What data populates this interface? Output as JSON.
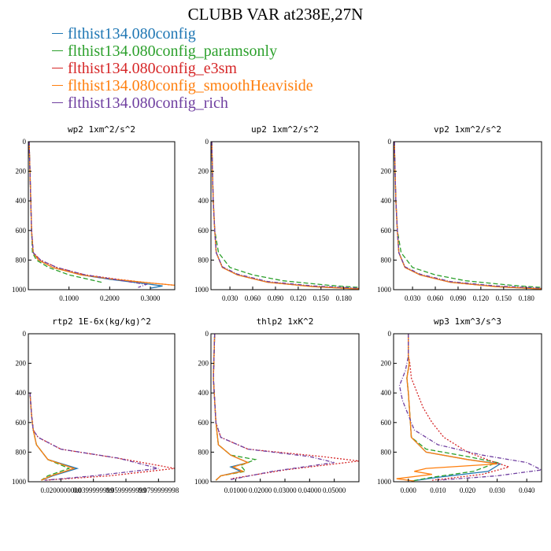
{
  "title": "CLUBB VAR at238E,27N",
  "legend": [
    {
      "label": "flthist134.080config",
      "color": "#1f77b4"
    },
    {
      "label": "flthist134.080config_paramsonly",
      "color": "#2ca02c"
    },
    {
      "label": "flthist134.080config_e3sm",
      "color": "#d62728"
    },
    {
      "label": "flthist134.080config_smoothHeaviside",
      "color": "#ff7f0e"
    },
    {
      "label": "flthist134.080config_rich",
      "color": "#6f3fa0"
    }
  ],
  "chart_data": [
    {
      "type": "line",
      "title": "wp2  1xm^2/s^2",
      "xlim": [
        0,
        0.36
      ],
      "ylim": [
        1000,
        0
      ],
      "xticks": [
        0.1,
        0.2,
        0.3
      ],
      "xticklabels": [
        "0.1000",
        "0.2000",
        "0.3000"
      ],
      "yticks": [
        0,
        200,
        400,
        600,
        800,
        1000
      ],
      "yticklabels": [
        "0",
        "200",
        "400",
        "600",
        "800",
        "1000"
      ],
      "series": [
        {
          "color": "#1f77b4",
          "dash": "",
          "x": [
            0.002,
            0.004,
            0.006,
            0.008,
            0.012,
            0.025,
            0.06,
            0.13,
            0.2,
            0.29,
            0.33,
            0.3
          ],
          "y": [
            0,
            200,
            400,
            600,
            750,
            800,
            850,
            900,
            930,
            960,
            975,
            990
          ]
        },
        {
          "color": "#2ca02c",
          "dash": "6,3",
          "x": [
            0.002,
            0.004,
            0.006,
            0.008,
            0.01,
            0.02,
            0.05,
            0.1,
            0.18
          ],
          "y": [
            0,
            200,
            400,
            600,
            750,
            800,
            850,
            900,
            950
          ]
        },
        {
          "color": "#d62728",
          "dash": "2,2",
          "x": [
            0.002,
            0.004,
            0.006,
            0.008,
            0.012,
            0.03,
            0.07,
            0.14,
            0.22,
            0.3,
            0.36
          ],
          "y": [
            0,
            200,
            400,
            600,
            750,
            800,
            850,
            900,
            930,
            955,
            970
          ]
        },
        {
          "color": "#ff7f0e",
          "dash": "",
          "x": [
            0.002,
            0.004,
            0.006,
            0.008,
            0.012,
            0.025,
            0.06,
            0.13,
            0.21,
            0.3,
            0.36
          ],
          "y": [
            0,
            200,
            400,
            600,
            750,
            800,
            850,
            900,
            930,
            955,
            970
          ]
        },
        {
          "color": "#6f3fa0",
          "dash": "5,2,1,2",
          "x": [
            0.002,
            0.004,
            0.006,
            0.008,
            0.012,
            0.03,
            0.07,
            0.14,
            0.21,
            0.29,
            0.27
          ],
          "y": [
            0,
            200,
            400,
            600,
            750,
            800,
            850,
            900,
            930,
            965,
            985
          ]
        }
      ]
    },
    {
      "type": "line",
      "title": "up2  1xm^2/s^2",
      "xlim": [
        0.005,
        0.2
      ],
      "ylim": [
        1000,
        0
      ],
      "xticks": [
        0.03,
        0.06,
        0.09,
        0.12,
        0.15,
        0.18
      ],
      "xticklabels": [
        "0.030",
        "0.060",
        "0.090",
        "0.120",
        "0.150",
        "0.180"
      ],
      "yticks": [
        0,
        200,
        400,
        600,
        800,
        1000
      ],
      "yticklabels": [
        "0",
        "200",
        "400",
        "600",
        "800",
        "1000"
      ],
      "series": [
        {
          "color": "#1f77b4",
          "dash": "",
          "x": [
            0.006,
            0.007,
            0.008,
            0.01,
            0.012,
            0.02,
            0.04,
            0.08,
            0.14,
            0.2
          ],
          "y": [
            0,
            200,
            400,
            600,
            750,
            850,
            900,
            950,
            980,
            995
          ]
        },
        {
          "color": "#2ca02c",
          "dash": "6,3",
          "x": [
            0.006,
            0.007,
            0.008,
            0.01,
            0.015,
            0.03,
            0.06,
            0.1,
            0.16,
            0.2
          ],
          "y": [
            0,
            200,
            400,
            600,
            750,
            850,
            900,
            940,
            970,
            985
          ]
        },
        {
          "color": "#d62728",
          "dash": "2,2",
          "x": [
            0.006,
            0.007,
            0.008,
            0.01,
            0.012,
            0.02,
            0.04,
            0.08,
            0.14,
            0.2
          ],
          "y": [
            0,
            200,
            400,
            600,
            750,
            850,
            900,
            950,
            978,
            993
          ]
        },
        {
          "color": "#ff7f0e",
          "dash": "",
          "x": [
            0.006,
            0.007,
            0.008,
            0.01,
            0.012,
            0.02,
            0.04,
            0.08,
            0.14,
            0.2
          ],
          "y": [
            0,
            200,
            400,
            600,
            750,
            850,
            900,
            950,
            980,
            995
          ]
        },
        {
          "color": "#6f3fa0",
          "dash": "5,2,1,2",
          "x": [
            0.006,
            0.007,
            0.008,
            0.01,
            0.012,
            0.02,
            0.04,
            0.08,
            0.14,
            0.2
          ],
          "y": [
            0,
            200,
            400,
            600,
            750,
            845,
            895,
            945,
            975,
            990
          ]
        }
      ]
    },
    {
      "type": "line",
      "title": "vp2  1xm^2/s^2",
      "xlim": [
        0.005,
        0.2
      ],
      "ylim": [
        1000,
        0
      ],
      "xticks": [
        0.03,
        0.06,
        0.09,
        0.12,
        0.15,
        0.18
      ],
      "xticklabels": [
        "0.030",
        "0.060",
        "0.090",
        "0.120",
        "0.150",
        "0.180"
      ],
      "yticks": [
        0,
        200,
        400,
        600,
        800,
        1000
      ],
      "yticklabels": [
        "0",
        "200",
        "400",
        "600",
        "800",
        "1000"
      ],
      "series": [
        {
          "color": "#1f77b4",
          "dash": "",
          "x": [
            0.006,
            0.007,
            0.008,
            0.01,
            0.012,
            0.02,
            0.04,
            0.08,
            0.14,
            0.2
          ],
          "y": [
            0,
            200,
            400,
            600,
            750,
            850,
            900,
            950,
            980,
            995
          ]
        },
        {
          "color": "#2ca02c",
          "dash": "6,3",
          "x": [
            0.006,
            0.007,
            0.008,
            0.01,
            0.015,
            0.03,
            0.06,
            0.1,
            0.16,
            0.2
          ],
          "y": [
            0,
            200,
            400,
            600,
            750,
            850,
            900,
            940,
            970,
            985
          ]
        },
        {
          "color": "#d62728",
          "dash": "2,2",
          "x": [
            0.006,
            0.007,
            0.008,
            0.01,
            0.012,
            0.02,
            0.04,
            0.08,
            0.14,
            0.2
          ],
          "y": [
            0,
            200,
            400,
            600,
            750,
            850,
            900,
            950,
            978,
            993
          ]
        },
        {
          "color": "#ff7f0e",
          "dash": "",
          "x": [
            0.006,
            0.007,
            0.008,
            0.01,
            0.012,
            0.02,
            0.04,
            0.08,
            0.14,
            0.2
          ],
          "y": [
            0,
            200,
            400,
            600,
            750,
            850,
            900,
            950,
            980,
            995
          ]
        },
        {
          "color": "#6f3fa0",
          "dash": "5,2,1,2",
          "x": [
            0.006,
            0.007,
            0.008,
            0.01,
            0.012,
            0.02,
            0.04,
            0.08,
            0.14,
            0.2
          ],
          "y": [
            0,
            200,
            400,
            600,
            750,
            845,
            895,
            945,
            975,
            990
          ]
        }
      ]
    },
    {
      "type": "line",
      "title": "rtp2  1E-6x(kg/kg)^2",
      "xlim": [
        0,
        0.09
      ],
      "ylim": [
        1000,
        0
      ],
      "xticks": [
        0.02,
        0.04,
        0.06,
        0.08
      ],
      "xticklabels": [
        "0.0200000000",
        "0.0399999999",
        "0.0599999999",
        "0.0799999998"
      ],
      "yticks": [
        0,
        200,
        400,
        600,
        800,
        1000
      ],
      "yticklabels": [
        "0",
        "200",
        "400",
        "600",
        "800",
        "1000"
      ],
      "series": [
        {
          "color": "#1f77b4",
          "dash": "",
          "x": [
            0.001,
            0.002,
            0.003,
            0.005,
            0.012,
            0.03,
            0.015,
            0.008
          ],
          "y": [
            400,
            550,
            650,
            750,
            850,
            910,
            960,
            990
          ]
        },
        {
          "color": "#2ca02c",
          "dash": "6,3",
          "x": [
            0.001,
            0.002,
            0.003,
            0.005,
            0.012,
            0.025,
            0.012,
            0.008
          ],
          "y": [
            400,
            550,
            650,
            750,
            850,
            910,
            960,
            990
          ]
        },
        {
          "color": "#d62728",
          "dash": "2,2",
          "x": [
            0.001,
            0.002,
            0.003,
            0.006,
            0.02,
            0.06,
            0.09,
            0.05,
            0.01
          ],
          "y": [
            400,
            550,
            650,
            700,
            780,
            850,
            910,
            960,
            990
          ]
        },
        {
          "color": "#ff7f0e",
          "dash": "",
          "x": [
            0.001,
            0.002,
            0.003,
            0.005,
            0.012,
            0.028,
            0.014,
            0.008
          ],
          "y": [
            400,
            550,
            650,
            750,
            850,
            910,
            960,
            990
          ]
        },
        {
          "color": "#6f3fa0",
          "dash": "5,2,1,2",
          "x": [
            0.001,
            0.002,
            0.003,
            0.006,
            0.02,
            0.055,
            0.08,
            0.04,
            0.01
          ],
          "y": [
            400,
            550,
            650,
            700,
            780,
            840,
            910,
            960,
            990
          ]
        }
      ]
    },
    {
      "type": "line",
      "title": "thlp2  1xK^2",
      "xlim": [
        0,
        0.06
      ],
      "ylim": [
        1000,
        0
      ],
      "xticks": [
        0.01,
        0.02,
        0.03,
        0.04,
        0.05
      ],
      "xticklabels": [
        "0.01000",
        "0.02000",
        "0.03000",
        "0.04000",
        "0.05000"
      ],
      "yticks": [
        0,
        200,
        400,
        600,
        800,
        1000
      ],
      "yticklabels": [
        "0",
        "200",
        "400",
        "600",
        "800",
        "1000"
      ],
      "series": [
        {
          "color": "#1f77b4",
          "dash": "",
          "x": [
            0.0015,
            0.001,
            0.002,
            0.003,
            0.008,
            0.015,
            0.008,
            0.012,
            0.004,
            0.002
          ],
          "y": [
            0,
            300,
            600,
            750,
            820,
            870,
            900,
            930,
            960,
            990
          ]
        },
        {
          "color": "#2ca02c",
          "dash": "6,3",
          "x": [
            0.0015,
            0.001,
            0.002,
            0.003,
            0.008,
            0.018,
            0.012,
            0.014,
            0.004,
            0.002
          ],
          "y": [
            0,
            300,
            600,
            750,
            820,
            850,
            890,
            930,
            960,
            990
          ]
        },
        {
          "color": "#d62728",
          "dash": "2,2",
          "x": [
            0.0015,
            0.001,
            0.002,
            0.004,
            0.015,
            0.045,
            0.06,
            0.03,
            0.008
          ],
          "y": [
            0,
            300,
            600,
            700,
            780,
            830,
            860,
            920,
            980
          ]
        },
        {
          "color": "#ff7f0e",
          "dash": "",
          "x": [
            0.0015,
            0.001,
            0.002,
            0.003,
            0.008,
            0.015,
            0.009,
            0.013,
            0.004,
            0.002
          ],
          "y": [
            0,
            300,
            600,
            750,
            820,
            870,
            900,
            930,
            960,
            990
          ]
        },
        {
          "color": "#6f3fa0",
          "dash": "5,2,1,2",
          "x": [
            0.0015,
            0.001,
            0.002,
            0.004,
            0.015,
            0.04,
            0.05,
            0.025,
            0.008
          ],
          "y": [
            0,
            300,
            600,
            700,
            780,
            830,
            870,
            930,
            985
          ]
        }
      ]
    },
    {
      "type": "line",
      "title": "wp3  1xm^3/s^3",
      "xlim": [
        -0.005,
        0.045
      ],
      "ylim": [
        1000,
        0
      ],
      "xticks": [
        0,
        0.01,
        0.02,
        0.03,
        0.04
      ],
      "xticklabels": [
        "0.000",
        "0.010",
        "0.020",
        "0.030",
        "0.040"
      ],
      "yticks": [
        0,
        200,
        400,
        600,
        800,
        1000
      ],
      "yticklabels": [
        "0",
        "200",
        "400",
        "600",
        "800",
        "1000"
      ],
      "series": [
        {
          "color": "#1f77b4",
          "dash": "",
          "x": [
            0,
            0,
            0.0003,
            -0.0005,
            0,
            0.001,
            0.006,
            0.02,
            0.031,
            0.027,
            0.01,
            0.001
          ],
          "y": [
            0,
            150,
            200,
            300,
            400,
            700,
            800,
            850,
            880,
            930,
            970,
            995
          ]
        },
        {
          "color": "#2ca02c",
          "dash": "6,3",
          "x": [
            0,
            0,
            0.0003,
            -0.0005,
            0,
            0.001,
            0.006,
            0.02,
            0.03,
            0.022,
            0.008,
            0.001
          ],
          "y": [
            0,
            150,
            200,
            300,
            400,
            700,
            780,
            830,
            870,
            930,
            970,
            995
          ]
        },
        {
          "color": "#d62728",
          "dash": "2,2",
          "x": [
            0,
            0,
            0.0005,
            0.001,
            0.003,
            0.005,
            0.008,
            0.012,
            0.02,
            0.028,
            0.034,
            0.025,
            0.008
          ],
          "y": [
            0,
            150,
            200,
            300,
            400,
            500,
            600,
            700,
            800,
            860,
            900,
            950,
            990
          ]
        },
        {
          "color": "#ff7f0e",
          "dash": "",
          "x": [
            0,
            0,
            0.0003,
            -0.0005,
            0,
            0.001,
            0.006,
            0.02,
            0.03,
            0.006,
            0.002,
            0.008,
            -0.004,
            0.002
          ],
          "y": [
            0,
            150,
            200,
            300,
            400,
            700,
            800,
            850,
            880,
            910,
            930,
            950,
            980,
            995
          ]
        },
        {
          "color": "#6f3fa0",
          "dash": "5,2,1,2",
          "x": [
            0,
            0,
            -0.001,
            -0.003,
            -0.002,
            0,
            0.002,
            0.01,
            0.025,
            0.04,
            0.045,
            0.03,
            0.01
          ],
          "y": [
            0,
            150,
            250,
            350,
            450,
            550,
            650,
            750,
            820,
            870,
            920,
            960,
            990
          ]
        }
      ]
    }
  ]
}
